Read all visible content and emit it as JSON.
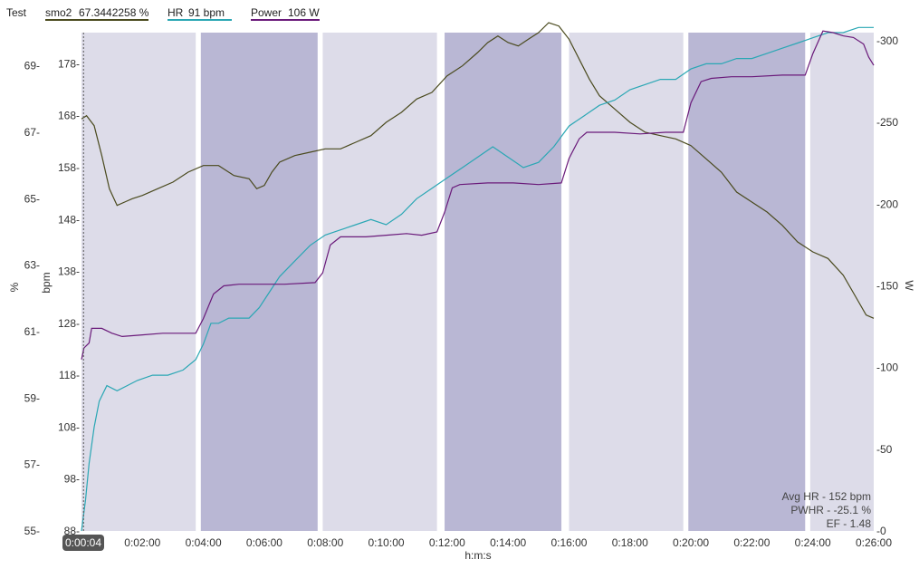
{
  "legend": {
    "title": "Test",
    "items": [
      {
        "label": "smo2",
        "value": "67.3442258 %",
        "color": "#4a4a1e"
      },
      {
        "label": "HR",
        "value": "91 bpm",
        "color": "#2aa7b4"
      },
      {
        "label": "Power",
        "value": "106 W",
        "color": "#6a1a7a"
      }
    ]
  },
  "cursor_time": "0:00:04",
  "stats": [
    "Avg HR - 152 bpm",
    "PWHR - -25.1 %",
    "EF - 1.48"
  ],
  "chart_data": {
    "type": "line",
    "xlabel": "h:m:s",
    "x_ticks": [
      "0:02:00",
      "0:04:00",
      "0:06:00",
      "0:08:00",
      "0:10:00",
      "0:12:00",
      "0:14:00",
      "0:16:00",
      "0:18:00",
      "0:20:00",
      "0:22:00",
      "0:24:00",
      "0:26:00"
    ],
    "x_range_sec": [
      0,
      1560
    ],
    "axes": {
      "smo2": {
        "label": "%",
        "range": [
          55,
          70
        ],
        "ticks": [
          "69-",
          "67-",
          "65-",
          "63-",
          "61-",
          "59-",
          "57-",
          "55-"
        ],
        "tick_values": [
          69,
          67,
          65,
          63,
          61,
          59,
          57,
          55
        ]
      },
      "hr": {
        "label": "bpm",
        "range": [
          88,
          184
        ],
        "ticks": [
          "178-",
          "168-",
          "158-",
          "148-",
          "138-",
          "128-",
          "118-",
          "108-",
          "98-",
          "88-"
        ],
        "tick_values": [
          178,
          168,
          158,
          148,
          138,
          128,
          118,
          108,
          98,
          88
        ]
      },
      "power": {
        "label": "W",
        "range": [
          0,
          305
        ],
        "ticks": [
          "-300",
          "-250",
          "-200",
          "-150",
          "-100",
          "-50",
          "-0"
        ],
        "tick_values": [
          300,
          250,
          200,
          150,
          100,
          50,
          0
        ]
      }
    },
    "intervals": [
      {
        "start_sec": 0,
        "end_sec": 225,
        "shade": "light"
      },
      {
        "start_sec": 235,
        "end_sec": 465,
        "shade": "dark"
      },
      {
        "start_sec": 475,
        "end_sec": 700,
        "shade": "light"
      },
      {
        "start_sec": 715,
        "end_sec": 945,
        "shade": "dark"
      },
      {
        "start_sec": 960,
        "end_sec": 1185,
        "shade": "light"
      },
      {
        "start_sec": 1195,
        "end_sec": 1425,
        "shade": "dark"
      },
      {
        "start_sec": 1435,
        "end_sec": 1560,
        "shade": "light"
      }
    ],
    "series": [
      {
        "name": "smo2",
        "axis": "smo2",
        "color": "#4a4a1e",
        "points": [
          [
            0,
            67.4
          ],
          [
            10,
            67.5
          ],
          [
            25,
            67.2
          ],
          [
            40,
            66.3
          ],
          [
            55,
            65.3
          ],
          [
            70,
            64.8
          ],
          [
            85,
            64.9
          ],
          [
            100,
            65.0
          ],
          [
            120,
            65.1
          ],
          [
            150,
            65.3
          ],
          [
            180,
            65.5
          ],
          [
            210,
            65.8
          ],
          [
            240,
            66.0
          ],
          [
            270,
            66.0
          ],
          [
            300,
            65.7
          ],
          [
            330,
            65.6
          ],
          [
            345,
            65.3
          ],
          [
            360,
            65.4
          ],
          [
            375,
            65.8
          ],
          [
            390,
            66.1
          ],
          [
            420,
            66.3
          ],
          [
            450,
            66.4
          ],
          [
            480,
            66.5
          ],
          [
            510,
            66.5
          ],
          [
            540,
            66.7
          ],
          [
            570,
            66.9
          ],
          [
            600,
            67.3
          ],
          [
            630,
            67.6
          ],
          [
            660,
            68.0
          ],
          [
            690,
            68.2
          ],
          [
            720,
            68.7
          ],
          [
            750,
            69.0
          ],
          [
            780,
            69.4
          ],
          [
            800,
            69.7
          ],
          [
            820,
            69.9
          ],
          [
            840,
            69.7
          ],
          [
            860,
            69.6
          ],
          [
            880,
            69.8
          ],
          [
            900,
            70.0
          ],
          [
            920,
            70.3
          ],
          [
            940,
            70.2
          ],
          [
            960,
            69.8
          ],
          [
            980,
            69.2
          ],
          [
            1000,
            68.6
          ],
          [
            1020,
            68.1
          ],
          [
            1050,
            67.7
          ],
          [
            1080,
            67.3
          ],
          [
            1110,
            67.0
          ],
          [
            1140,
            66.9
          ],
          [
            1170,
            66.8
          ],
          [
            1200,
            66.6
          ],
          [
            1230,
            66.2
          ],
          [
            1260,
            65.8
          ],
          [
            1290,
            65.2
          ],
          [
            1320,
            64.9
          ],
          [
            1350,
            64.6
          ],
          [
            1380,
            64.2
          ],
          [
            1410,
            63.7
          ],
          [
            1440,
            63.4
          ],
          [
            1470,
            63.2
          ],
          [
            1500,
            62.7
          ],
          [
            1530,
            61.9
          ],
          [
            1545,
            61.5
          ],
          [
            1560,
            61.4
          ]
        ]
      },
      {
        "name": "HR",
        "axis": "hr",
        "color": "#2aa7b4",
        "points": [
          [
            0,
            88
          ],
          [
            8,
            94
          ],
          [
            15,
            101
          ],
          [
            25,
            108
          ],
          [
            35,
            113
          ],
          [
            50,
            116
          ],
          [
            70,
            115
          ],
          [
            90,
            116
          ],
          [
            110,
            117
          ],
          [
            140,
            118
          ],
          [
            170,
            118
          ],
          [
            200,
            119
          ],
          [
            225,
            121
          ],
          [
            240,
            124
          ],
          [
            255,
            128
          ],
          [
            270,
            128
          ],
          [
            290,
            129
          ],
          [
            310,
            129
          ],
          [
            330,
            129
          ],
          [
            350,
            131
          ],
          [
            370,
            134
          ],
          [
            390,
            137
          ],
          [
            420,
            140
          ],
          [
            450,
            143
          ],
          [
            480,
            145
          ],
          [
            510,
            146
          ],
          [
            540,
            147
          ],
          [
            570,
            148
          ],
          [
            600,
            147
          ],
          [
            630,
            149
          ],
          [
            660,
            152
          ],
          [
            690,
            154
          ],
          [
            720,
            156
          ],
          [
            750,
            158
          ],
          [
            780,
            160
          ],
          [
            810,
            162
          ],
          [
            840,
            160
          ],
          [
            870,
            158
          ],
          [
            900,
            159
          ],
          [
            930,
            162
          ],
          [
            960,
            166
          ],
          [
            990,
            168
          ],
          [
            1020,
            170
          ],
          [
            1050,
            171
          ],
          [
            1080,
            173
          ],
          [
            1110,
            174
          ],
          [
            1140,
            175
          ],
          [
            1170,
            175
          ],
          [
            1200,
            177
          ],
          [
            1230,
            178
          ],
          [
            1260,
            178
          ],
          [
            1290,
            179
          ],
          [
            1320,
            179
          ],
          [
            1350,
            180
          ],
          [
            1380,
            181
          ],
          [
            1410,
            182
          ],
          [
            1440,
            183
          ],
          [
            1470,
            184
          ],
          [
            1500,
            184
          ],
          [
            1530,
            185
          ],
          [
            1560,
            185
          ]
        ]
      },
      {
        "name": "Power",
        "axis": "power",
        "color": "#6a1a7a",
        "points": [
          [
            0,
            105
          ],
          [
            5,
            112
          ],
          [
            15,
            115
          ],
          [
            20,
            124
          ],
          [
            40,
            124
          ],
          [
            60,
            121
          ],
          [
            80,
            119
          ],
          [
            120,
            120
          ],
          [
            160,
            121
          ],
          [
            225,
            121
          ],
          [
            240,
            130
          ],
          [
            260,
            145
          ],
          [
            280,
            150
          ],
          [
            310,
            151
          ],
          [
            350,
            151
          ],
          [
            400,
            151
          ],
          [
            460,
            152
          ],
          [
            475,
            158
          ],
          [
            490,
            175
          ],
          [
            510,
            180
          ],
          [
            560,
            180
          ],
          [
            600,
            181
          ],
          [
            640,
            182
          ],
          [
            670,
            181
          ],
          [
            700,
            183
          ],
          [
            715,
            195
          ],
          [
            730,
            210
          ],
          [
            745,
            212
          ],
          [
            800,
            213
          ],
          [
            850,
            213
          ],
          [
            900,
            212
          ],
          [
            945,
            213
          ],
          [
            960,
            228
          ],
          [
            980,
            240
          ],
          [
            995,
            244
          ],
          [
            1050,
            244
          ],
          [
            1100,
            243
          ],
          [
            1150,
            244
          ],
          [
            1185,
            244
          ],
          [
            1200,
            262
          ],
          [
            1220,
            275
          ],
          [
            1240,
            277
          ],
          [
            1280,
            278
          ],
          [
            1320,
            278
          ],
          [
            1380,
            279
          ],
          [
            1425,
            279
          ],
          [
            1440,
            292
          ],
          [
            1460,
            306
          ],
          [
            1480,
            305
          ],
          [
            1500,
            303
          ],
          [
            1520,
            302
          ],
          [
            1540,
            298
          ],
          [
            1550,
            290
          ],
          [
            1560,
            285
          ]
        ]
      }
    ]
  }
}
